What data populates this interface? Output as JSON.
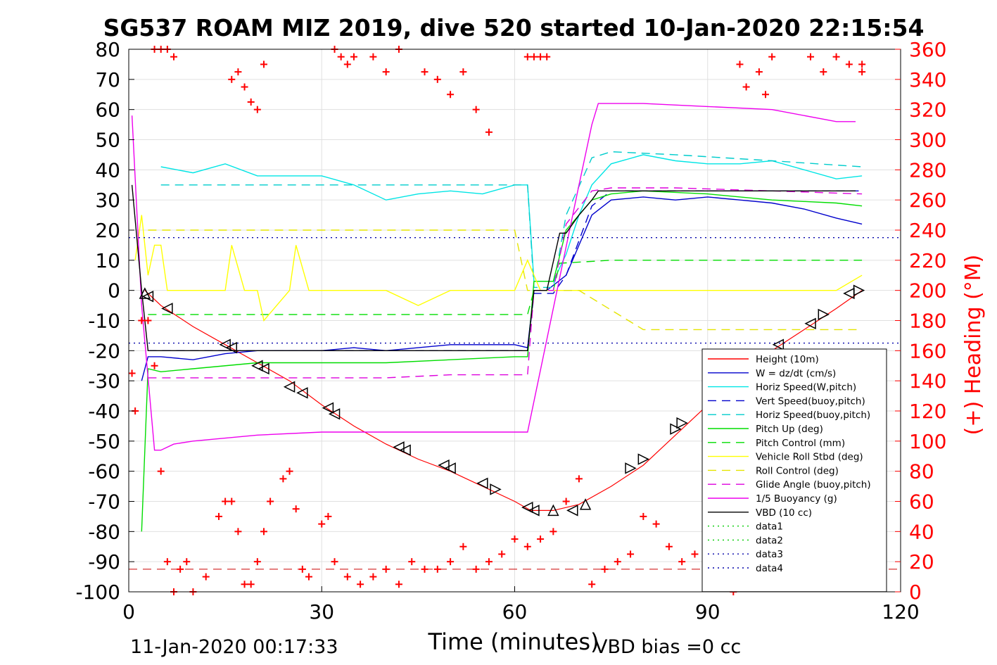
{
  "chart_data": {
    "type": "line",
    "title": "SG537 ROAM MIZ 2019, dive 520 started 10-Jan-2020 22:15:54",
    "xlabel": "Time (minutes)",
    "ylabel": "",
    "y2label": "(+) Heading (°M)",
    "xlim": [
      0,
      120
    ],
    "ylim": [
      -100,
      80
    ],
    "y2lim": [
      0,
      360
    ],
    "xticks": [
      "0",
      "30",
      "60",
      "90",
      "120"
    ],
    "yticks": [
      "-100",
      "-90",
      "-80",
      "-70",
      "-60",
      "-50",
      "-40",
      "-30",
      "-20",
      "-10",
      "0",
      "10",
      "20",
      "30",
      "40",
      "50",
      "60",
      "70",
      "80"
    ],
    "y2ticks": [
      "0",
      "20",
      "40",
      "60",
      "80",
      "100",
      "120",
      "140",
      "160",
      "180",
      "200",
      "220",
      "240",
      "260",
      "280",
      "300",
      "320",
      "340",
      "360"
    ],
    "grid": true,
    "legend_position": "lower-right",
    "footer_left": "11-Jan-2020 00:17:33",
    "footer_right": "VBD bias =0 cc",
    "colors": {
      "height": "#ff0000",
      "w": "#0000cc",
      "horiz": "#00e5e5",
      "vert_buoy": "#0000cc",
      "horiz_buoy": "#00cccc",
      "pitch": "#00dd00",
      "pitch_ctl": "#00dd00",
      "roll": "#ffff00",
      "roll_ctl": "#e5e500",
      "glide": "#dd00dd",
      "buoy": "#ee00ee",
      "vbd": "#000000",
      "data1": "#00cc00",
      "data2": "#00cc00",
      "data3": "#0000aa",
      "data4": "#0000aa",
      "heading": "#ff0000",
      "heading_axis": "#ff0000"
    },
    "series": [
      {
        "name": "Height (10m)",
        "key": "height",
        "dash": "",
        "x": [
          2.5,
          5,
          10,
          15,
          20,
          25,
          30,
          35,
          40,
          45,
          50,
          55,
          60,
          62.5,
          66,
          70,
          75,
          80,
          85,
          90,
          95,
          100,
          105,
          110,
          114
        ],
        "y": [
          0,
          -5,
          -12,
          -18,
          -24,
          -30,
          -38,
          -45,
          -51,
          -56,
          -60,
          -65,
          -70,
          -73,
          -73,
          -71,
          -65,
          -58,
          -48,
          -38,
          -28,
          -20,
          -13,
          -6,
          0
        ]
      },
      {
        "name": "W = dz/dt (cm/s)",
        "key": "w",
        "dash": "",
        "x": [
          2,
          3,
          5,
          10,
          15,
          20,
          25,
          30,
          35,
          40,
          45,
          50,
          55,
          60,
          62,
          63,
          65,
          68,
          70,
          72,
          75,
          80,
          85,
          90,
          95,
          100,
          105,
          110,
          114
        ],
        "y": [
          -30,
          -22,
          -22,
          -23,
          -21,
          -20,
          -20,
          -20,
          -19,
          -20,
          -19,
          -18,
          -18,
          -18,
          -19,
          0,
          0,
          5,
          15,
          25,
          30,
          31,
          30,
          31,
          30,
          29,
          27,
          24,
          22
        ]
      },
      {
        "name": "Horiz Speed(W,pitch)",
        "key": "horiz",
        "dash": "",
        "x": [
          5,
          10,
          15,
          20,
          25,
          30,
          35,
          40,
          45,
          50,
          55,
          60,
          62,
          63,
          66,
          68,
          70,
          72,
          75,
          80,
          85,
          90,
          95,
          100,
          105,
          110,
          114
        ],
        "y": [
          41,
          39,
          42,
          38,
          38,
          38,
          35,
          30,
          32,
          33,
          32,
          35,
          35,
          3,
          3,
          12,
          25,
          35,
          42,
          45,
          43,
          42,
          42,
          43,
          40,
          37,
          38
        ]
      },
      {
        "name": "Vert Speed(buoy,pitch)",
        "key": "vert_buoy",
        "dash": "12,8",
        "x": [
          3,
          10,
          20,
          30,
          40,
          50,
          60,
          62,
          63,
          66,
          68,
          72,
          75,
          85,
          100,
          114
        ],
        "y": [
          -20,
          -20,
          -20,
          -20,
          -20,
          -20,
          -20,
          -20,
          -1,
          -1,
          5,
          28,
          33,
          33,
          33,
          33
        ]
      },
      {
        "name": "Horiz Speed(buoy,pitch)",
        "key": "horiz_buoy",
        "dash": "12,8",
        "x": [
          5,
          10,
          20,
          30,
          40,
          50,
          60,
          62,
          63,
          66,
          68,
          72,
          75,
          85,
          100,
          114
        ],
        "y": [
          35,
          35,
          35,
          35,
          35,
          35,
          35,
          35,
          1,
          1,
          25,
          44,
          46,
          45,
          43,
          41
        ]
      },
      {
        "name": "Pitch Up (deg)",
        "key": "pitch",
        "dash": "",
        "x": [
          2,
          3,
          5,
          10,
          20,
          30,
          40,
          50,
          60,
          62,
          63,
          66,
          68,
          72,
          75,
          80,
          90,
          100,
          110,
          114
        ],
        "y": [
          -80,
          -26,
          -27,
          -26,
          -24,
          -24,
          -24,
          -23,
          -22,
          -22,
          3,
          3,
          20,
          30,
          32,
          33,
          32,
          30,
          29,
          28
        ]
      },
      {
        "name": "Pitch Control (mm)",
        "key": "pitch_ctl",
        "dash": "12,8",
        "x": [
          3,
          10,
          20,
          30,
          40,
          50,
          60,
          62,
          63,
          66,
          67,
          75,
          85,
          100,
          114
        ],
        "y": [
          -8,
          -8,
          -8,
          -8,
          -8,
          -8,
          -8,
          -8,
          0,
          0,
          9,
          10,
          10,
          10,
          10
        ]
      },
      {
        "name": "Vehicle Roll Stbd (deg)",
        "key": "roll",
        "dash": "",
        "x": [
          1,
          2,
          3,
          4,
          5,
          6,
          10,
          15,
          16,
          18,
          20,
          21,
          25,
          26,
          28,
          30,
          35,
          40,
          45,
          50,
          55,
          60,
          62,
          64,
          68,
          70,
          80,
          90,
          100,
          110,
          114
        ],
        "y": [
          10,
          25,
          5,
          15,
          15,
          0,
          0,
          0,
          15,
          0,
          0,
          -10,
          0,
          15,
          0,
          0,
          0,
          0,
          -5,
          0,
          0,
          0,
          10,
          0,
          0,
          0,
          0,
          0,
          0,
          0,
          5
        ]
      },
      {
        "name": "Roll Control (deg)",
        "key": "roll_ctl",
        "dash": "12,8",
        "x": [
          3,
          10,
          20,
          30,
          40,
          50,
          60,
          62,
          70,
          80,
          90,
          100,
          114
        ],
        "y": [
          20,
          20,
          20,
          20,
          20,
          20,
          20,
          0,
          0,
          -13,
          -13,
          -13,
          -13
        ]
      },
      {
        "name": "Glide Angle (buoy,pitch)",
        "key": "glide",
        "dash": "12,8",
        "x": [
          3,
          10,
          20,
          30,
          40,
          50,
          60,
          62,
          63,
          66,
          68,
          72,
          75,
          85,
          100,
          114
        ],
        "y": [
          -29,
          -29,
          -29,
          -29,
          -29,
          -28,
          -28,
          -28,
          0,
          0,
          22,
          33,
          34,
          34,
          33,
          32
        ]
      },
      {
        "name": "1/5 Buoyancy (g)",
        "key": "buoy",
        "dash": "",
        "x": [
          0.5,
          2,
          4,
          5,
          7,
          10,
          20,
          30,
          40,
          50,
          60,
          62,
          70,
          72,
          73,
          80,
          90,
          100,
          110,
          113
        ],
        "y": [
          58,
          -5,
          -53,
          -53,
          -51,
          -50,
          -48,
          -47,
          -47,
          -47,
          -47,
          -47,
          35,
          55,
          62,
          62,
          61,
          60,
          56,
          56
        ]
      },
      {
        "name": "VBD (10 cc)",
        "key": "vbd",
        "dash": "",
        "x": [
          0.5,
          2,
          3,
          20,
          40,
          60,
          62,
          63,
          65,
          67,
          68,
          70,
          72,
          73,
          80,
          90,
          100,
          110,
          113
        ],
        "y": [
          35,
          0,
          -20,
          -20,
          -20,
          -20,
          -20,
          0,
          0,
          19,
          19,
          25,
          30,
          33,
          33,
          33,
          33,
          33,
          33
        ]
      },
      {
        "name": "data1",
        "key": "data1",
        "dash": "dot",
        "x": [],
        "y": []
      },
      {
        "name": "data2",
        "key": "data2",
        "dash": "dot",
        "x": [],
        "y": []
      },
      {
        "name": "data3",
        "key": "data3",
        "dash": "dot",
        "x": [
          0,
          120
        ],
        "y": [
          17.5,
          17.5
        ]
      },
      {
        "name": "data4",
        "key": "data4",
        "dash": "dot",
        "x": [
          0,
          120
        ],
        "y": [
          -17.5,
          -17.5
        ]
      }
    ],
    "heading": {
      "axis": "right",
      "marker": "+",
      "x": [
        0.5,
        1,
        2,
        3,
        4,
        5,
        6,
        7,
        8,
        9,
        10,
        12,
        14,
        15,
        16,
        17,
        18,
        19,
        20,
        21,
        22,
        24,
        25,
        26,
        27,
        28,
        30,
        31,
        32,
        34,
        36,
        38,
        40,
        42,
        44,
        46,
        48,
        50,
        52,
        54,
        56,
        58,
        60,
        62,
        64,
        66,
        68,
        70,
        72,
        74,
        76,
        78,
        80,
        82,
        84,
        86,
        88,
        90,
        92,
        94,
        96,
        98,
        100,
        102,
        104,
        106,
        108,
        110,
        112,
        114
      ],
      "y": [
        145,
        120,
        180,
        180,
        150,
        80,
        20,
        0,
        15,
        20,
        0,
        10,
        50,
        60,
        60,
        40,
        5,
        5,
        20,
        40,
        60,
        75,
        80,
        55,
        15,
        10,
        45,
        50,
        20,
        10,
        5,
        10,
        15,
        5,
        20,
        15,
        15,
        20,
        30,
        15,
        20,
        25,
        35,
        30,
        35,
        40,
        60,
        75,
        5,
        15,
        20,
        25,
        50,
        45,
        30,
        20,
        25,
        20,
        5,
        0,
        5,
        10,
        5,
        15,
        10,
        20,
        5,
        10,
        5,
        350
      ]
    },
    "heading_top": {
      "x": [
        4,
        5,
        6,
        7,
        16,
        17,
        18,
        19,
        20,
        21,
        32,
        33,
        34,
        35,
        38,
        40,
        42,
        46,
        48,
        50,
        52,
        54,
        56,
        62,
        63,
        64,
        65,
        95,
        96,
        98,
        99,
        100,
        106,
        108,
        110,
        112,
        114
      ],
      "y": [
        360,
        360,
        360,
        355,
        340,
        345,
        335,
        325,
        320,
        350,
        360,
        355,
        350,
        355,
        355,
        345,
        360,
        345,
        340,
        330,
        345,
        320,
        305,
        355,
        355,
        355,
        355,
        350,
        335,
        345,
        330,
        355,
        355,
        345,
        355,
        350,
        345
      ]
    },
    "triangles": {
      "x": [
        2.5,
        3,
        6,
        15,
        16,
        20,
        21,
        25,
        27,
        31,
        32,
        42,
        43,
        49,
        50,
        55,
        57,
        62,
        63,
        66,
        69,
        71,
        78,
        80,
        85,
        86,
        101,
        106,
        108,
        112,
        113.5
      ],
      "y": [
        -1,
        -2,
        -6,
        -18,
        -19,
        -25,
        -26,
        -32,
        -34,
        -39,
        -41,
        -52,
        -53,
        -58,
        -59,
        -64,
        -66,
        -72,
        -73,
        -73,
        -73,
        -71,
        -59,
        -56,
        -46,
        -44,
        -18,
        -11,
        -8,
        -1,
        0
      ],
      "dir": [
        "up",
        "left",
        "left",
        "left",
        "left",
        "left",
        "left",
        "left",
        "left",
        "left",
        "left",
        "left",
        "left",
        "left",
        "left",
        "left",
        "right",
        "left",
        "left",
        "up",
        "left",
        "up",
        "right",
        "right",
        "right",
        "right",
        "left",
        "left",
        "right",
        "left",
        "right"
      ]
    },
    "red_dashed_line": {
      "y": -92.5
    }
  }
}
